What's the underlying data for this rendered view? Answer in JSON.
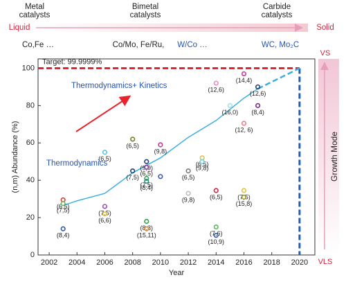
{
  "chart_data": {
    "type": "scatter",
    "header": {
      "groups": [
        "Metal\ncatalysts",
        "Bimetal\ncatalysts",
        "Carbide\ncatalysts"
      ],
      "examples": [
        "Co,Fe …",
        "Co/Mo, Fe/Ru,",
        "W/Co …",
        "WC, Mo₂C"
      ],
      "left": "Liquid",
      "right": "Solid"
    },
    "xlabel": "Year",
    "ylabel": "(n,m) Abundance (%)",
    "xlim": [
      2001.2,
      2021.1
    ],
    "ylim": [
      0,
      105
    ],
    "xticks": [
      2002,
      2004,
      2006,
      2008,
      2010,
      2012,
      2014,
      2016,
      2018,
      2020
    ],
    "yticks": [
      0,
      20,
      40,
      60,
      80,
      100
    ],
    "target": 100,
    "target_x": 2020,
    "target_label": "Target: 99.9999%",
    "target_color": "#e8232c",
    "target_x_color": "#1f5fb4",
    "annotations": [
      "Thermodynamics",
      "Thermodynamics+ Kinetics"
    ],
    "curve": {
      "color": "#3ab0e2",
      "x": [
        2003,
        2004,
        2006,
        2008,
        2010,
        2012,
        2014,
        2016,
        2017
      ],
      "values": [
        26.5,
        29,
        33,
        44,
        52,
        63,
        72,
        84,
        89
      ],
      "ext_x": [
        2017,
        2020
      ],
      "ext_values": [
        89,
        100
      ]
    },
    "x": [
      2003,
      2003,
      2003,
      2006,
      2006,
      2006,
      2008,
      2008,
      2009,
      2009,
      2009,
      2009,
      2010,
      2010,
      2009,
      2009,
      2012,
      2012,
      2013,
      2013,
      2014,
      2014,
      2014,
      2014,
      2015,
      2016,
      2016,
      2016,
      2016,
      2017,
      2017
    ],
    "values": [
      29.5,
      27.5,
      14,
      55,
      26,
      22,
      62,
      45,
      50,
      47,
      41,
      39.5,
      42,
      59,
      18,
      14,
      45,
      33,
      52,
      50,
      92,
      34.5,
      15,
      10.5,
      80,
      97,
      70.5,
      34.5,
      31,
      80,
      90
    ],
    "point_labels": [
      "(6,5)",
      "(7,5)",
      "(8,4)",
      "(6,5)",
      "(7,5)",
      "(6,6)",
      "(6,5)",
      "(7,5)",
      "(9,9)",
      "(6,5)",
      "(7,5)",
      "(8,4)",
      "",
      "(9,8)",
      "(8,3)",
      "(15,11)",
      "(6,5)",
      "(9,8)",
      "(6,5)",
      "(9,8)",
      "(12,6)",
      "(6,5)",
      "(7,6)",
      "(10,9)",
      "(16,0)",
      "(14,4)",
      "(12, 6)",
      "(7,5)",
      "(15,8)",
      "(8,4)",
      "(12,6)"
    ],
    "colors": [
      "#e0392b",
      "#5cb85c",
      "#2a55a8",
      "#55c6d8",
      "#9b4fb0",
      "#e0c33a",
      "#7a7a2a",
      "#1f3c7a",
      "#1f3c7a",
      "#8a3aa8",
      "#3aa05a",
      "#2a8a8a",
      "#3a55b0",
      "#c8359a",
      "#2aa04a",
      "#e08a2a",
      "#7a7a7a",
      "#bbbbbb",
      "#e0c33a",
      "#6ad0e0",
      "#e888c8",
      "#d0203a",
      "#5cb85c",
      "#2a55a8",
      "#a8dde8",
      "#c8359a",
      "#f07a8a",
      "#e0c33a",
      "#9a9a2a",
      "#7a2a8a",
      "#1f3c7a"
    ],
    "growth": {
      "title": "Growth Mode",
      "top": "VS",
      "bottom": "VLS"
    }
  }
}
